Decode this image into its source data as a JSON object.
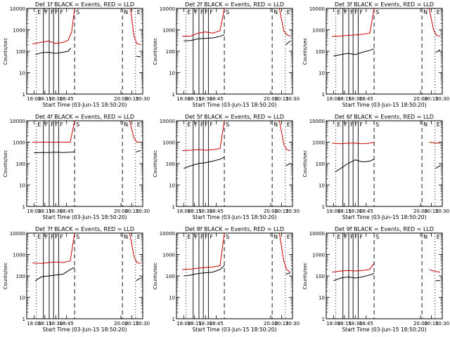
{
  "colors": {
    "events": "#000000",
    "lld": "#cc0000",
    "axes": "#000000"
  },
  "chart_data": [
    {
      "type": "line",
      "title": "Det 1f BLACK = Events, RED = LLD",
      "ylabel": "Counts/sec",
      "xlabel": "Start Time (03-Jun-15 18:50:20)",
      "log_y": true,
      "ylim": [
        1,
        10000
      ],
      "xlim": [
        "17:50",
        "20:30"
      ],
      "xticks": [
        "18:00",
        "18:15",
        "18:30",
        "18:45",
        "20:00",
        "20:15",
        "20:30"
      ],
      "yticks": [
        "1",
        "10",
        "100",
        "1000",
        "10000"
      ],
      "markers": {
        "E": [
          "18:03",
          "20:20"
        ],
        "F": [
          "18:13",
          "18:21",
          "18:27",
          "18:34"
        ],
        "S": [
          "18:56"
        ],
        "N": [
          "20:02"
        ]
      },
      "series": [
        {
          "name": "Events",
          "x": [
            "18:02",
            "18:10",
            "18:20",
            "18:30",
            "18:40",
            "18:47",
            "18:51"
          ],
          "y": [
            70,
            85,
            90,
            80,
            90,
            100,
            140
          ]
        },
        {
          "name": "Events",
          "x": [
            "20:21",
            "20:24",
            "20:27"
          ],
          "y": [
            60,
            55,
            58
          ]
        },
        {
          "name": "LLD",
          "x": [
            "17:58",
            "18:10",
            "18:20",
            "18:30",
            "18:40",
            "18:47",
            "18:52",
            "18:56"
          ],
          "y": [
            220,
            260,
            300,
            230,
            260,
            320,
            800,
            10000
          ]
        },
        {
          "name": "LLD",
          "x": [
            "20:13",
            "20:18",
            "20:22",
            "20:27"
          ],
          "y": [
            10000,
            500,
            220,
            210
          ]
        }
      ]
    },
    {
      "type": "line",
      "title": "Det 2f BLACK = Events, RED = LLD",
      "ylabel": "Counts/sec",
      "xlabel": "Start Time (03-Jun-15 18:50:20)",
      "log_y": true,
      "ylim": [
        1,
        10000
      ],
      "xlim": [
        "17:50",
        "20:30"
      ],
      "xticks": [
        "18:00",
        "18:15",
        "18:30",
        "18:45",
        "20:00",
        "20:15",
        "20:30"
      ],
      "yticks": [
        "1",
        "10",
        "100",
        "1000",
        "10000"
      ],
      "markers": {
        "E": [
          "18:03",
          "20:20"
        ],
        "F": [
          "18:13",
          "18:21",
          "18:27",
          "18:34"
        ],
        "S": [
          "18:56"
        ],
        "N": [
          "20:02"
        ]
      },
      "series": [
        {
          "name": "Events",
          "x": [
            "18:00",
            "18:10",
            "18:20",
            "18:30",
            "18:40",
            "18:50",
            "18:56"
          ],
          "y": [
            300,
            320,
            380,
            400,
            420,
            500,
            600
          ]
        },
        {
          "name": "Events",
          "x": [
            "20:21",
            "20:24",
            "20:27"
          ],
          "y": [
            200,
            250,
            300
          ]
        },
        {
          "name": "LLD",
          "x": [
            "17:58",
            "18:10",
            "18:20",
            "18:30",
            "18:40",
            "18:50",
            "18:56"
          ],
          "y": [
            500,
            520,
            700,
            800,
            700,
            900,
            10000
          ]
        },
        {
          "name": "LLD",
          "x": [
            "20:12",
            "20:18",
            "20:22",
            "20:27"
          ],
          "y": [
            10000,
            900,
            600,
            500
          ]
        }
      ]
    },
    {
      "type": "line",
      "title": "Det 3f BLACK = Events, RED = LLD",
      "ylabel": "Counts/sec",
      "xlabel": "Start Time (03-Jun-15 18:50:20)",
      "log_y": true,
      "ylim": [
        1,
        10000
      ],
      "xlim": [
        "17:50",
        "20:30"
      ],
      "xticks": [
        "18:00",
        "18:15",
        "18:30",
        "18:45",
        "20:00",
        "20:15",
        "20:30"
      ],
      "yticks": [
        "1",
        "10",
        "100",
        "1000",
        "10000"
      ],
      "markers": {
        "E": [
          "18:03",
          "20:20"
        ],
        "F": [
          "18:13",
          "18:21",
          "18:27",
          "18:34"
        ],
        "S": [
          "18:56"
        ],
        "N": [
          "20:02"
        ]
      },
      "series": [
        {
          "name": "Events",
          "x": [
            "18:00",
            "18:10",
            "18:20",
            "18:30",
            "18:40",
            "18:50",
            "18:56"
          ],
          "y": [
            60,
            70,
            80,
            70,
            90,
            110,
            130
          ]
        },
        {
          "name": "Events",
          "x": [
            "20:21",
            "20:24",
            "20:27"
          ],
          "y": [
            90,
            100,
            120
          ]
        },
        {
          "name": "LLD",
          "x": [
            "17:58",
            "18:10",
            "18:20",
            "18:30",
            "18:40",
            "18:50",
            "18:56"
          ],
          "y": [
            500,
            520,
            550,
            580,
            620,
            700,
            10000
          ]
        },
        {
          "name": "LLD",
          "x": [
            "20:12",
            "20:18",
            "20:22",
            "20:27"
          ],
          "y": [
            10000,
            1000,
            550,
            500
          ]
        }
      ]
    },
    {
      "type": "line",
      "title": "Det 4f BLACK = Events, RED = LLD",
      "ylabel": "Counts/sec",
      "xlabel": "Start Time (03-Jun-15 18:50:20)",
      "log_y": true,
      "ylim": [
        1,
        10000
      ],
      "xlim": [
        "17:50",
        "20:30"
      ],
      "xticks": [
        "18:00",
        "18:15",
        "18:30",
        "18:45",
        "20:00",
        "20:15",
        "20:30"
      ],
      "yticks": [
        "1",
        "10",
        "100",
        "1000",
        "10000"
      ],
      "markers": {
        "E": [
          "18:03",
          "20:20"
        ],
        "F": [
          "18:13",
          "18:21",
          "18:27",
          "18:34"
        ],
        "S": [
          "18:56"
        ],
        "N": [
          "20:02"
        ]
      },
      "series": [
        {
          "name": "Events",
          "x": [
            "18:00",
            "18:10",
            "18:20",
            "18:30",
            "18:40",
            "18:50",
            "18:56"
          ],
          "y": [
            320,
            330,
            330,
            340,
            330,
            340,
            350
          ]
        },
        {
          "name": "Events",
          "x": [
            "20:21",
            "20:24",
            "20:27"
          ],
          "y": [
            350,
            380,
            400
          ]
        },
        {
          "name": "LLD",
          "x": [
            "17:58",
            "18:10",
            "18:20",
            "18:30",
            "18:40",
            "18:50",
            "18:56"
          ],
          "y": [
            1000,
            1000,
            1000,
            1000,
            1000,
            1000,
            10000
          ]
        },
        {
          "name": "LLD",
          "x": [
            "20:12",
            "20:18",
            "20:22",
            "20:27"
          ],
          "y": [
            10000,
            1500,
            1000,
            1000
          ]
        }
      ]
    },
    {
      "type": "line",
      "title": "Det 5f BLACK = Events, RED = LLD",
      "ylabel": "Counts/sec",
      "xlabel": "Start Time (03-Jun-15 18:50:20)",
      "log_y": true,
      "ylim": [
        1,
        10000
      ],
      "xlim": [
        "17:50",
        "20:30"
      ],
      "xticks": [
        "18:00",
        "18:15",
        "18:30",
        "18:45",
        "20:00",
        "20:15",
        "20:30"
      ],
      "yticks": [
        "1",
        "10",
        "100",
        "1000",
        "10000"
      ],
      "markers": {
        "E": [
          "18:03",
          "20:20"
        ],
        "F": [
          "18:13",
          "18:21",
          "18:27",
          "18:34"
        ],
        "S": [
          "18:56"
        ],
        "N": [
          "20:02"
        ]
      },
      "series": [
        {
          "name": "Events",
          "x": [
            "18:00",
            "18:10",
            "18:20",
            "18:30",
            "18:40",
            "18:50",
            "18:56"
          ],
          "y": [
            60,
            80,
            100,
            110,
            130,
            160,
            200
          ]
        },
        {
          "name": "Events",
          "x": [
            "20:21",
            "20:24",
            "20:27"
          ],
          "y": [
            80,
            90,
            100
          ]
        },
        {
          "name": "LLD",
          "x": [
            "17:58",
            "18:10",
            "18:20",
            "18:30",
            "18:40",
            "18:50",
            "18:56"
          ],
          "y": [
            400,
            420,
            450,
            420,
            450,
            500,
            10000
          ]
        },
        {
          "name": "LLD",
          "x": [
            "20:12",
            "20:18",
            "20:22",
            "20:27"
          ],
          "y": [
            10000,
            800,
            450,
            400
          ]
        }
      ]
    },
    {
      "type": "line",
      "title": "Det 6f BLACK = Events, RED = LLD",
      "ylabel": "Counts/sec",
      "xlabel": "Start Time (03-Jun-15 18:50:20)",
      "log_y": true,
      "ylim": [
        1,
        10000
      ],
      "xlim": [
        "17:50",
        "20:30"
      ],
      "xticks": [
        "18:00",
        "18:15",
        "18:30",
        "18:45",
        "20:00",
        "20:15",
        "20:30"
      ],
      "yticks": [
        "1",
        "10",
        "100",
        "1000",
        "10000"
      ],
      "markers": {
        "E": [
          "18:03",
          "20:20"
        ],
        "F": [
          "18:13",
          "18:21",
          "18:27",
          "18:34"
        ],
        "S": [
          "18:56"
        ],
        "N": [
          "20:02"
        ]
      },
      "series": [
        {
          "name": "Events",
          "x": [
            "18:02",
            "18:10",
            "18:20",
            "18:30",
            "18:40",
            "18:50",
            "18:56"
          ],
          "y": [
            40,
            60,
            100,
            150,
            120,
            130,
            160
          ]
        },
        {
          "name": "Events",
          "x": [
            "20:21",
            "20:24",
            "20:27"
          ],
          "y": [
            60,
            70,
            80
          ]
        },
        {
          "name": "LLD",
          "x": [
            "17:58",
            "18:10",
            "18:20",
            "18:30",
            "18:40",
            "18:50",
            "18:56"
          ],
          "y": [
            900,
            850,
            900,
            900,
            850,
            900,
            1000
          ]
        },
        {
          "name": "LLD",
          "x": [
            "20:12",
            "20:18",
            "20:22",
            "20:27"
          ],
          "y": [
            1000,
            950,
            900,
            900
          ]
        }
      ]
    },
    {
      "type": "line",
      "title": "Det 7f BLACK = Events, RED = LLD",
      "ylabel": "Counts/sec",
      "xlabel": "Start Time (03-Jun-15 18:50:20)",
      "log_y": true,
      "ylim": [
        1,
        10000
      ],
      "xlim": [
        "17:50",
        "20:30"
      ],
      "xticks": [
        "18:00",
        "18:15",
        "18:30",
        "18:45",
        "20:00",
        "20:15",
        "20:30"
      ],
      "yticks": [
        "1",
        "10",
        "100",
        "1000",
        "10000"
      ],
      "markers": {
        "E": [
          "18:03",
          "20:20"
        ],
        "F": [
          "18:13",
          "18:21",
          "18:27",
          "18:34"
        ],
        "S": [
          "18:56"
        ],
        "N": [
          "20:02"
        ]
      },
      "series": [
        {
          "name": "Events",
          "x": [
            "18:02",
            "18:10",
            "18:20",
            "18:30",
            "18:40",
            "18:50",
            "18:56"
          ],
          "y": [
            60,
            90,
            100,
            110,
            120,
            200,
            250
          ]
        },
        {
          "name": "Events",
          "x": [
            "20:21",
            "20:24",
            "20:27"
          ],
          "y": [
            60,
            70,
            80
          ]
        },
        {
          "name": "LLD",
          "x": [
            "17:58",
            "18:10",
            "18:20",
            "18:30",
            "18:40",
            "18:50",
            "18:56"
          ],
          "y": [
            400,
            380,
            420,
            450,
            420,
            500,
            10000
          ]
        },
        {
          "name": "LLD",
          "x": [
            "20:12",
            "20:18",
            "20:22",
            "20:27"
          ],
          "y": [
            10000,
            800,
            420,
            380
          ]
        }
      ]
    },
    {
      "type": "line",
      "title": "Det 8f BLACK = Events, RED = LLD",
      "ylabel": "Counts/sec",
      "xlabel": "Start Time (03-Jun-15 18:50:20)",
      "log_y": true,
      "ylim": [
        1,
        10000
      ],
      "xlim": [
        "17:50",
        "20:30"
      ],
      "xticks": [
        "18:00",
        "18:15",
        "18:30",
        "18:45",
        "20:00",
        "20:15",
        "20:30"
      ],
      "yticks": [
        "1",
        "10",
        "100",
        "1000",
        "10000"
      ],
      "markers": {
        "E": [
          "18:03",
          "20:20"
        ],
        "F": [
          "18:13",
          "18:21",
          "18:27",
          "18:34"
        ],
        "S": [
          "18:56"
        ],
        "N": [
          "20:02"
        ]
      },
      "series": [
        {
          "name": "Events",
          "x": [
            "18:00",
            "18:10",
            "18:20",
            "18:30",
            "18:40",
            "18:50",
            "18:56"
          ],
          "y": [
            100,
            110,
            130,
            140,
            150,
            200,
            300
          ]
        },
        {
          "name": "Events",
          "x": [
            "20:21",
            "20:24",
            "20:27"
          ],
          "y": [
            120,
            130,
            140
          ]
        },
        {
          "name": "LLD",
          "x": [
            "17:58",
            "18:10",
            "18:20",
            "18:30",
            "18:40",
            "18:50",
            "18:56"
          ],
          "y": [
            200,
            210,
            230,
            250,
            260,
            300,
            10000
          ]
        },
        {
          "name": "LLD",
          "x": [
            "20:12",
            "20:18",
            "20:22",
            "20:27"
          ],
          "y": [
            10000,
            500,
            200,
            150
          ]
        }
      ]
    },
    {
      "type": "line",
      "title": "Det 9f BLACK = Events, RED = LLD",
      "ylabel": "Counts/sec",
      "xlabel": "Start Time (03-Jun-15 18:50:20)",
      "log_y": true,
      "ylim": [
        1,
        10000
      ],
      "xlim": [
        "17:50",
        "20:30"
      ],
      "xticks": [
        "18:00",
        "18:15",
        "18:30",
        "18:45",
        "20:00",
        "20:15",
        "20:30"
      ],
      "yticks": [
        "1",
        "10",
        "100",
        "1000",
        "10000"
      ],
      "markers": {
        "E": [
          "18:03",
          "20:20"
        ],
        "F": [
          "18:13",
          "18:21",
          "18:27",
          "18:34"
        ],
        "S": [
          "18:56"
        ],
        "N": [
          "20:02"
        ]
      },
      "series": [
        {
          "name": "Events",
          "x": [
            "18:00",
            "18:10",
            "18:20",
            "18:30",
            "18:40",
            "18:50",
            "18:56"
          ],
          "y": [
            60,
            80,
            90,
            80,
            90,
            110,
            130
          ]
        },
        {
          "name": "Events",
          "x": [
            "20:21",
            "20:24",
            "20:27"
          ],
          "y": [
            60,
            60,
            60
          ]
        },
        {
          "name": "LLD",
          "x": [
            "17:58",
            "18:10",
            "18:20",
            "18:30",
            "18:40",
            "18:50",
            "18:56"
          ],
          "y": [
            150,
            170,
            180,
            170,
            180,
            200,
            400
          ]
        },
        {
          "name": "LLD",
          "x": [
            "20:12",
            "20:18",
            "20:22",
            "20:27"
          ],
          "y": [
            200,
            170,
            160,
            150
          ]
        }
      ]
    }
  ]
}
